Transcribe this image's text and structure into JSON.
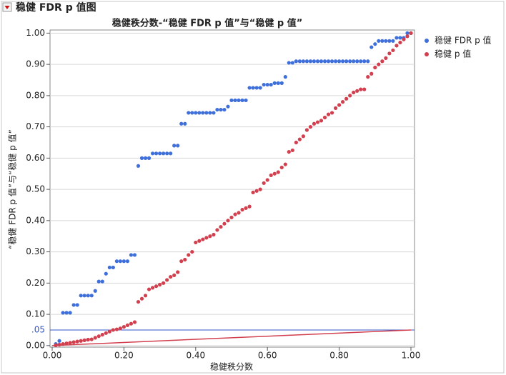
{
  "header": {
    "title": "稳健 FDR p 值图"
  },
  "chart_data": {
    "type": "scatter",
    "title": "稳健秩分数-“稳健 FDR p 值”与“稳健 p 值”",
    "x_label": "稳健秩分数",
    "y_label": "“稳健 FDR p 值”与“稳健 p 值”",
    "x": [
      0.01,
      0.02,
      0.03,
      0.04,
      0.05,
      0.06,
      0.07,
      0.08,
      0.09,
      0.1,
      0.11,
      0.12,
      0.13,
      0.14,
      0.15,
      0.16,
      0.17,
      0.18,
      0.19,
      0.2,
      0.21,
      0.22,
      0.23,
      0.24,
      0.25,
      0.26,
      0.27,
      0.28,
      0.29,
      0.3,
      0.31,
      0.32,
      0.33,
      0.34,
      0.35,
      0.36,
      0.37,
      0.38,
      0.39,
      0.4,
      0.41,
      0.42,
      0.43,
      0.44,
      0.45,
      0.46,
      0.47,
      0.48,
      0.49,
      0.5,
      0.51,
      0.52,
      0.53,
      0.54,
      0.55,
      0.56,
      0.57,
      0.58,
      0.59,
      0.6,
      0.61,
      0.62,
      0.63,
      0.64,
      0.65,
      0.66,
      0.67,
      0.68,
      0.69,
      0.7,
      0.71,
      0.72,
      0.73,
      0.74,
      0.75,
      0.76,
      0.77,
      0.78,
      0.79,
      0.8,
      0.81,
      0.82,
      0.83,
      0.84,
      0.85,
      0.86,
      0.87,
      0.88,
      0.89,
      0.9,
      0.91,
      0.92,
      0.93,
      0.94,
      0.95,
      0.96,
      0.97,
      0.98,
      0.99,
      1.0
    ],
    "series": [
      {
        "name": "稳健 FDR p 值",
        "color": "#3f6fdb",
        "values": [
          0.005,
          0.015,
          0.105,
          0.105,
          0.105,
          0.13,
          0.13,
          0.16,
          0.16,
          0.16,
          0.16,
          0.175,
          0.205,
          0.205,
          0.23,
          0.25,
          0.25,
          0.27,
          0.27,
          0.27,
          0.27,
          0.29,
          0.29,
          0.575,
          0.6,
          0.6,
          0.6,
          0.615,
          0.615,
          0.615,
          0.615,
          0.615,
          0.615,
          0.64,
          0.64,
          0.71,
          0.71,
          0.745,
          0.745,
          0.745,
          0.745,
          0.745,
          0.745,
          0.745,
          0.745,
          0.755,
          0.755,
          0.755,
          0.765,
          0.785,
          0.785,
          0.785,
          0.785,
          0.785,
          0.825,
          0.825,
          0.825,
          0.825,
          0.835,
          0.835,
          0.835,
          0.84,
          0.84,
          0.84,
          0.86,
          0.905,
          0.905,
          0.91,
          0.91,
          0.91,
          0.91,
          0.91,
          0.91,
          0.91,
          0.91,
          0.91,
          0.91,
          0.91,
          0.91,
          0.91,
          0.91,
          0.91,
          0.91,
          0.91,
          0.91,
          0.91,
          0.91,
          0.91,
          0.955,
          0.965,
          0.975,
          0.975,
          0.975,
          0.975,
          0.975,
          0.985,
          0.985,
          0.985,
          1.0,
          1.0
        ]
      },
      {
        "name": "稳健 p 值",
        "color": "#d2404f",
        "values": [
          0.001,
          0.003,
          0.005,
          0.007,
          0.009,
          0.011,
          0.013,
          0.015,
          0.017,
          0.019,
          0.02,
          0.025,
          0.03,
          0.035,
          0.04,
          0.045,
          0.05,
          0.052,
          0.055,
          0.06,
          0.065,
          0.07,
          0.075,
          0.14,
          0.15,
          0.16,
          0.18,
          0.185,
          0.19,
          0.195,
          0.2,
          0.21,
          0.22,
          0.225,
          0.235,
          0.27,
          0.275,
          0.29,
          0.3,
          0.33,
          0.335,
          0.34,
          0.345,
          0.35,
          0.355,
          0.37,
          0.38,
          0.39,
          0.4,
          0.41,
          0.42,
          0.425,
          0.435,
          0.44,
          0.445,
          0.49,
          0.495,
          0.5,
          0.52,
          0.53,
          0.545,
          0.55,
          0.555,
          0.57,
          0.58,
          0.62,
          0.625,
          0.65,
          0.66,
          0.67,
          0.69,
          0.7,
          0.71,
          0.715,
          0.72,
          0.73,
          0.74,
          0.745,
          0.76,
          0.77,
          0.78,
          0.79,
          0.8,
          0.81,
          0.815,
          0.82,
          0.82,
          0.86,
          0.87,
          0.89,
          0.9,
          0.91,
          0.92,
          0.935,
          0.945,
          0.96,
          0.97,
          0.98,
          0.99,
          1.0
        ]
      }
    ],
    "xlim": [
      -0.006,
      1.01
    ],
    "ylim": [
      -0.005,
      1.01
    ],
    "xticks": [
      {
        "value": 0,
        "label": "0.00"
      },
      {
        "value": 0.2,
        "label": "0.20"
      },
      {
        "value": 0.4,
        "label": "0.40"
      },
      {
        "value": 0.6,
        "label": "0.60"
      },
      {
        "value": 0.8,
        "label": "0.80"
      },
      {
        "value": 1,
        "label": "1.00"
      }
    ],
    "yticks": [
      {
        "value": 0,
        "label": "0.00"
      },
      {
        "value": 0.1,
        "label": "0.10"
      },
      {
        "value": 0.2,
        "label": "0.20"
      },
      {
        "value": 0.3,
        "label": "0.30"
      },
      {
        "value": 0.4,
        "label": "0.40"
      },
      {
        "value": 0.5,
        "label": "0.50"
      },
      {
        "value": 0.6,
        "label": "0.60"
      },
      {
        "value": 0.7,
        "label": "0.70"
      },
      {
        "value": 0.8,
        "label": "0.80"
      },
      {
        "value": 0.9,
        "label": "0.90"
      },
      {
        "value": 1,
        "label": "1.00"
      }
    ],
    "grid": true,
    "legend": "right",
    "hline": {
      "value": 0.05,
      "label": ".05",
      "color": "#2f55c8"
    },
    "diagonal": {
      "x": [
        0,
        1
      ],
      "y": [
        0,
        0.05
      ],
      "color": "#d2404f"
    }
  }
}
